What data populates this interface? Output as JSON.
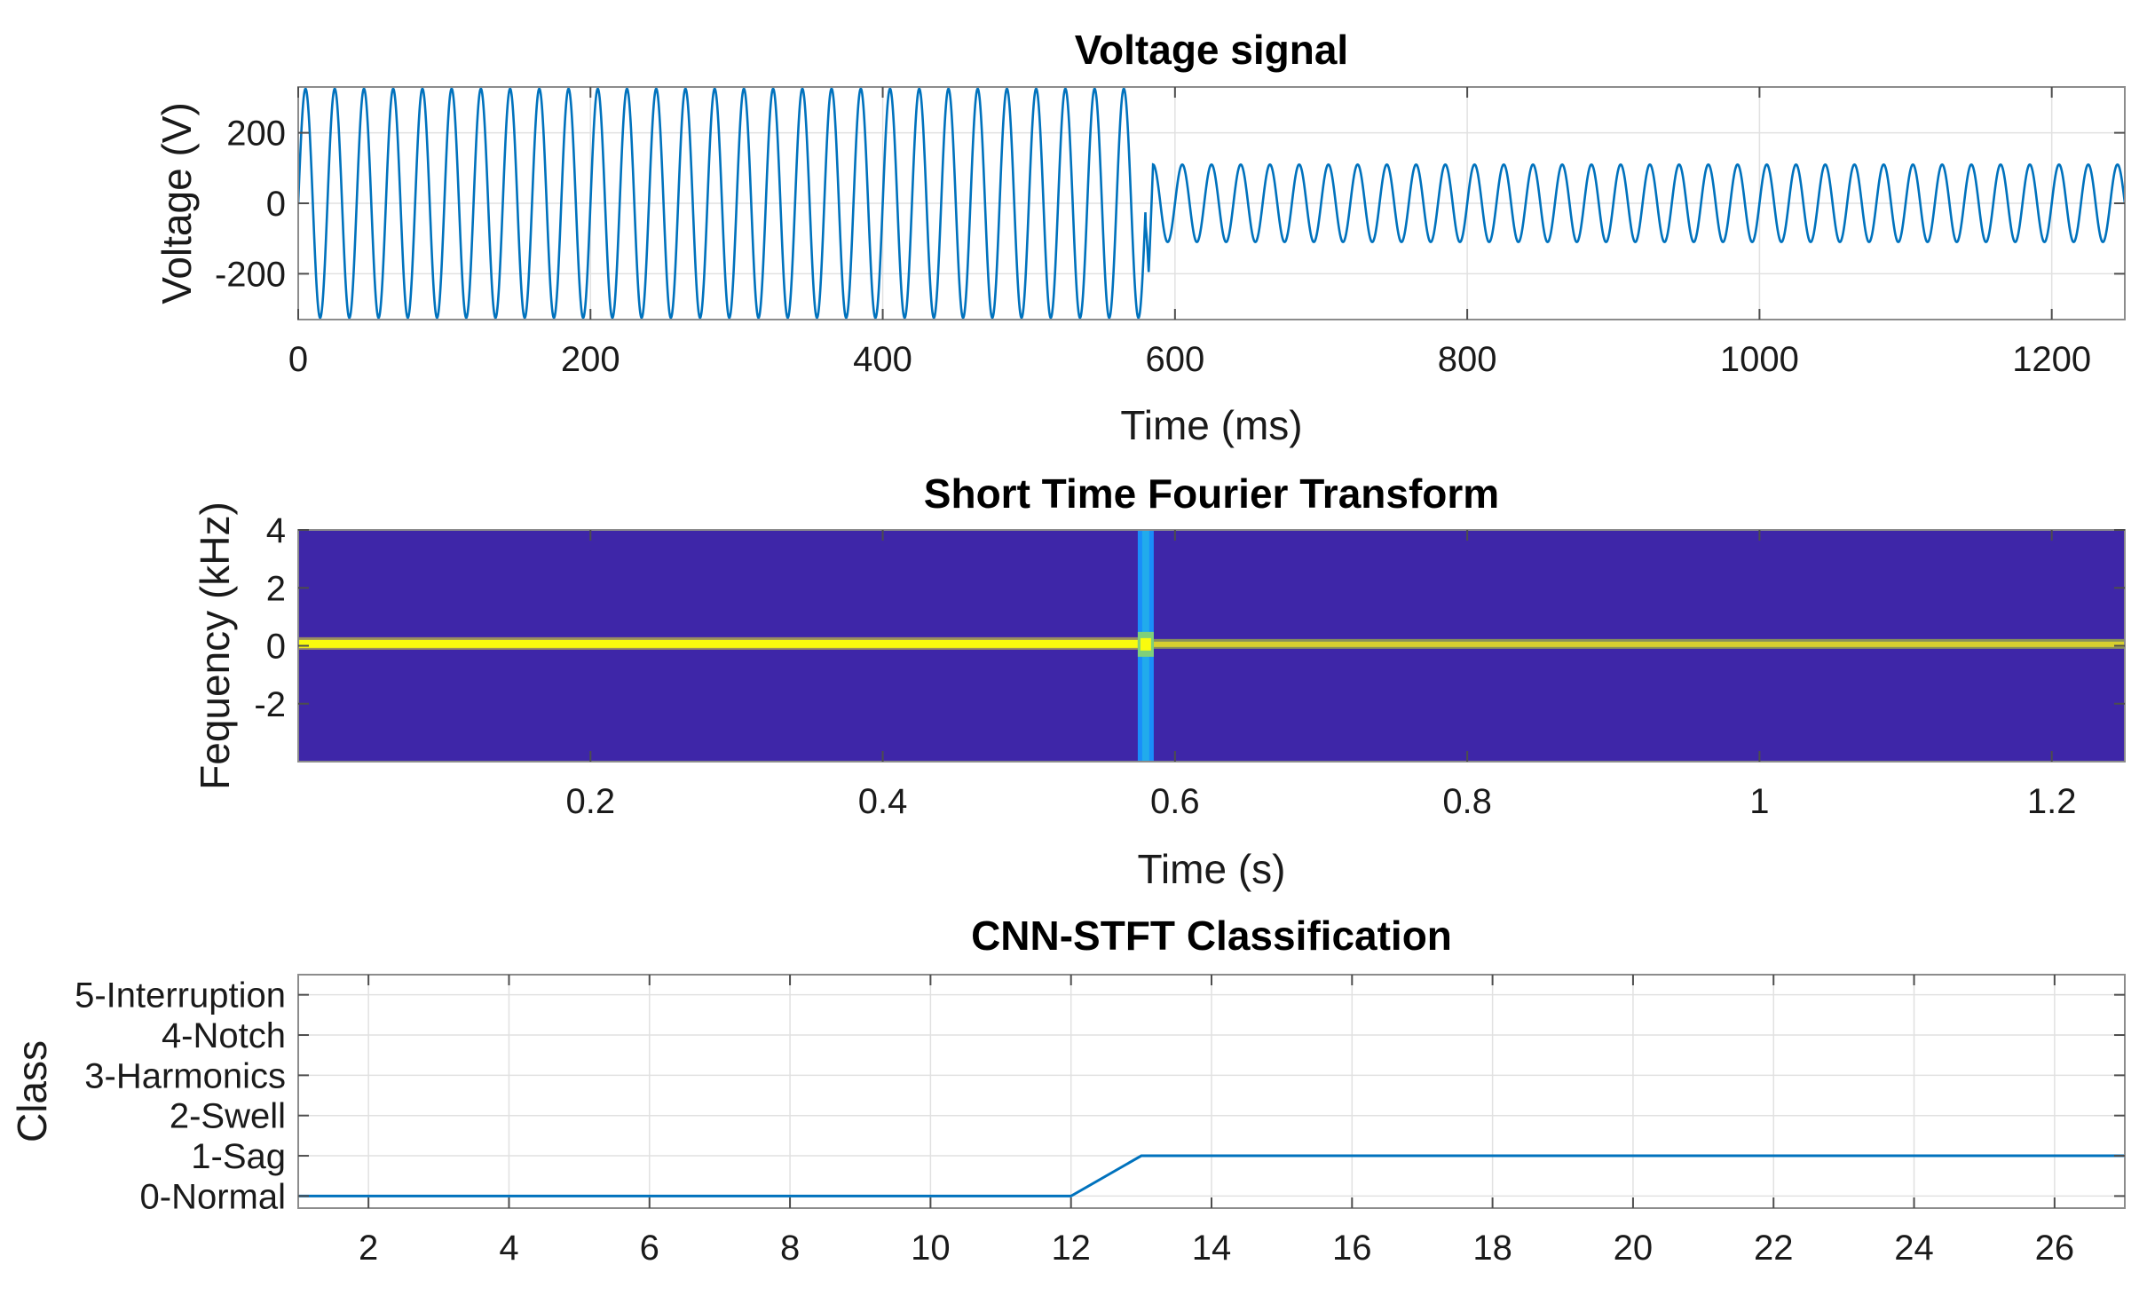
{
  "colors": {
    "series": "#0072bd",
    "heatmap_bg": "#3e26a8",
    "heatmap_line": "#f9fb0e",
    "heatmap_event": "#1a8dfa",
    "heatmap_event_core": "#27bfe2",
    "heatmap_hot": "#d7cf2f"
  },
  "chart_data": [
    {
      "id": "voltage",
      "type": "line",
      "title": "Voltage signal",
      "xlabel": "Time (ms)",
      "ylabel": "Voltage (V)",
      "xlim": [
        0,
        1250
      ],
      "ylim": [
        -330,
        330
      ],
      "xticks": [
        0,
        200,
        400,
        600,
        800,
        1000,
        1200
      ],
      "xticklabels": [
        "0",
        "200",
        "400",
        "600",
        "800",
        "1000",
        "1200"
      ],
      "yticks": [
        -200,
        0,
        200
      ],
      "yticklabels": [
        "-200",
        "0",
        "200"
      ],
      "grid": true,
      "signal": {
        "frequency_hz": 50,
        "amplitude_before": 325,
        "amplitude_after": 110,
        "event_time_ms": 580,
        "transient_min": -195
      }
    },
    {
      "id": "stft",
      "type": "heatmap",
      "title": "Short Time Fourier Transform",
      "xlabel": "Time (s)",
      "ylabel": "Fequency (kHz)",
      "xlim": [
        0,
        1.25
      ],
      "ylim": [
        -4,
        4
      ],
      "xticks": [
        0.2,
        0.4,
        0.6,
        0.8,
        1,
        1.2
      ],
      "xticklabels": [
        "0.2",
        "0.4",
        "0.6",
        "0.8",
        "1",
        "1.2"
      ],
      "yticks": [
        -2,
        0,
        2,
        4
      ],
      "yticklabels": [
        "-2",
        "0",
        "2",
        "4"
      ],
      "dominant_frequency_khz": 0.05,
      "event_time_s": 0.58
    },
    {
      "id": "classification",
      "type": "line",
      "title": "CNN-STFT Classification",
      "xlabel": "",
      "ylabel": "Class",
      "xlim": [
        1,
        27
      ],
      "ylim": [
        -0.3,
        5.5
      ],
      "xticks": [
        2,
        4,
        6,
        8,
        10,
        12,
        14,
        16,
        18,
        20,
        22,
        24,
        26
      ],
      "xticklabels": [
        "2",
        "4",
        "6",
        "8",
        "10",
        "12",
        "14",
        "16",
        "18",
        "20",
        "22",
        "24",
        "26"
      ],
      "yticks": [
        0,
        1,
        2,
        3,
        4,
        5
      ],
      "yticklabels": [
        "0-Normal",
        "1-Sag",
        "2-Swell",
        "3-Harmonics",
        "4-Notch",
        "5-Interruption"
      ],
      "grid": true,
      "x": [
        1,
        2,
        3,
        4,
        5,
        6,
        7,
        8,
        9,
        10,
        11,
        12,
        13,
        14,
        15,
        16,
        17,
        18,
        19,
        20,
        21,
        22,
        23,
        24,
        25,
        26,
        27
      ],
      "y": [
        0,
        0,
        0,
        0,
        0,
        0,
        0,
        0,
        0,
        0,
        0,
        0,
        1,
        1,
        1,
        1,
        1,
        1,
        1,
        1,
        1,
        1,
        1,
        1,
        1,
        1,
        1
      ]
    }
  ]
}
